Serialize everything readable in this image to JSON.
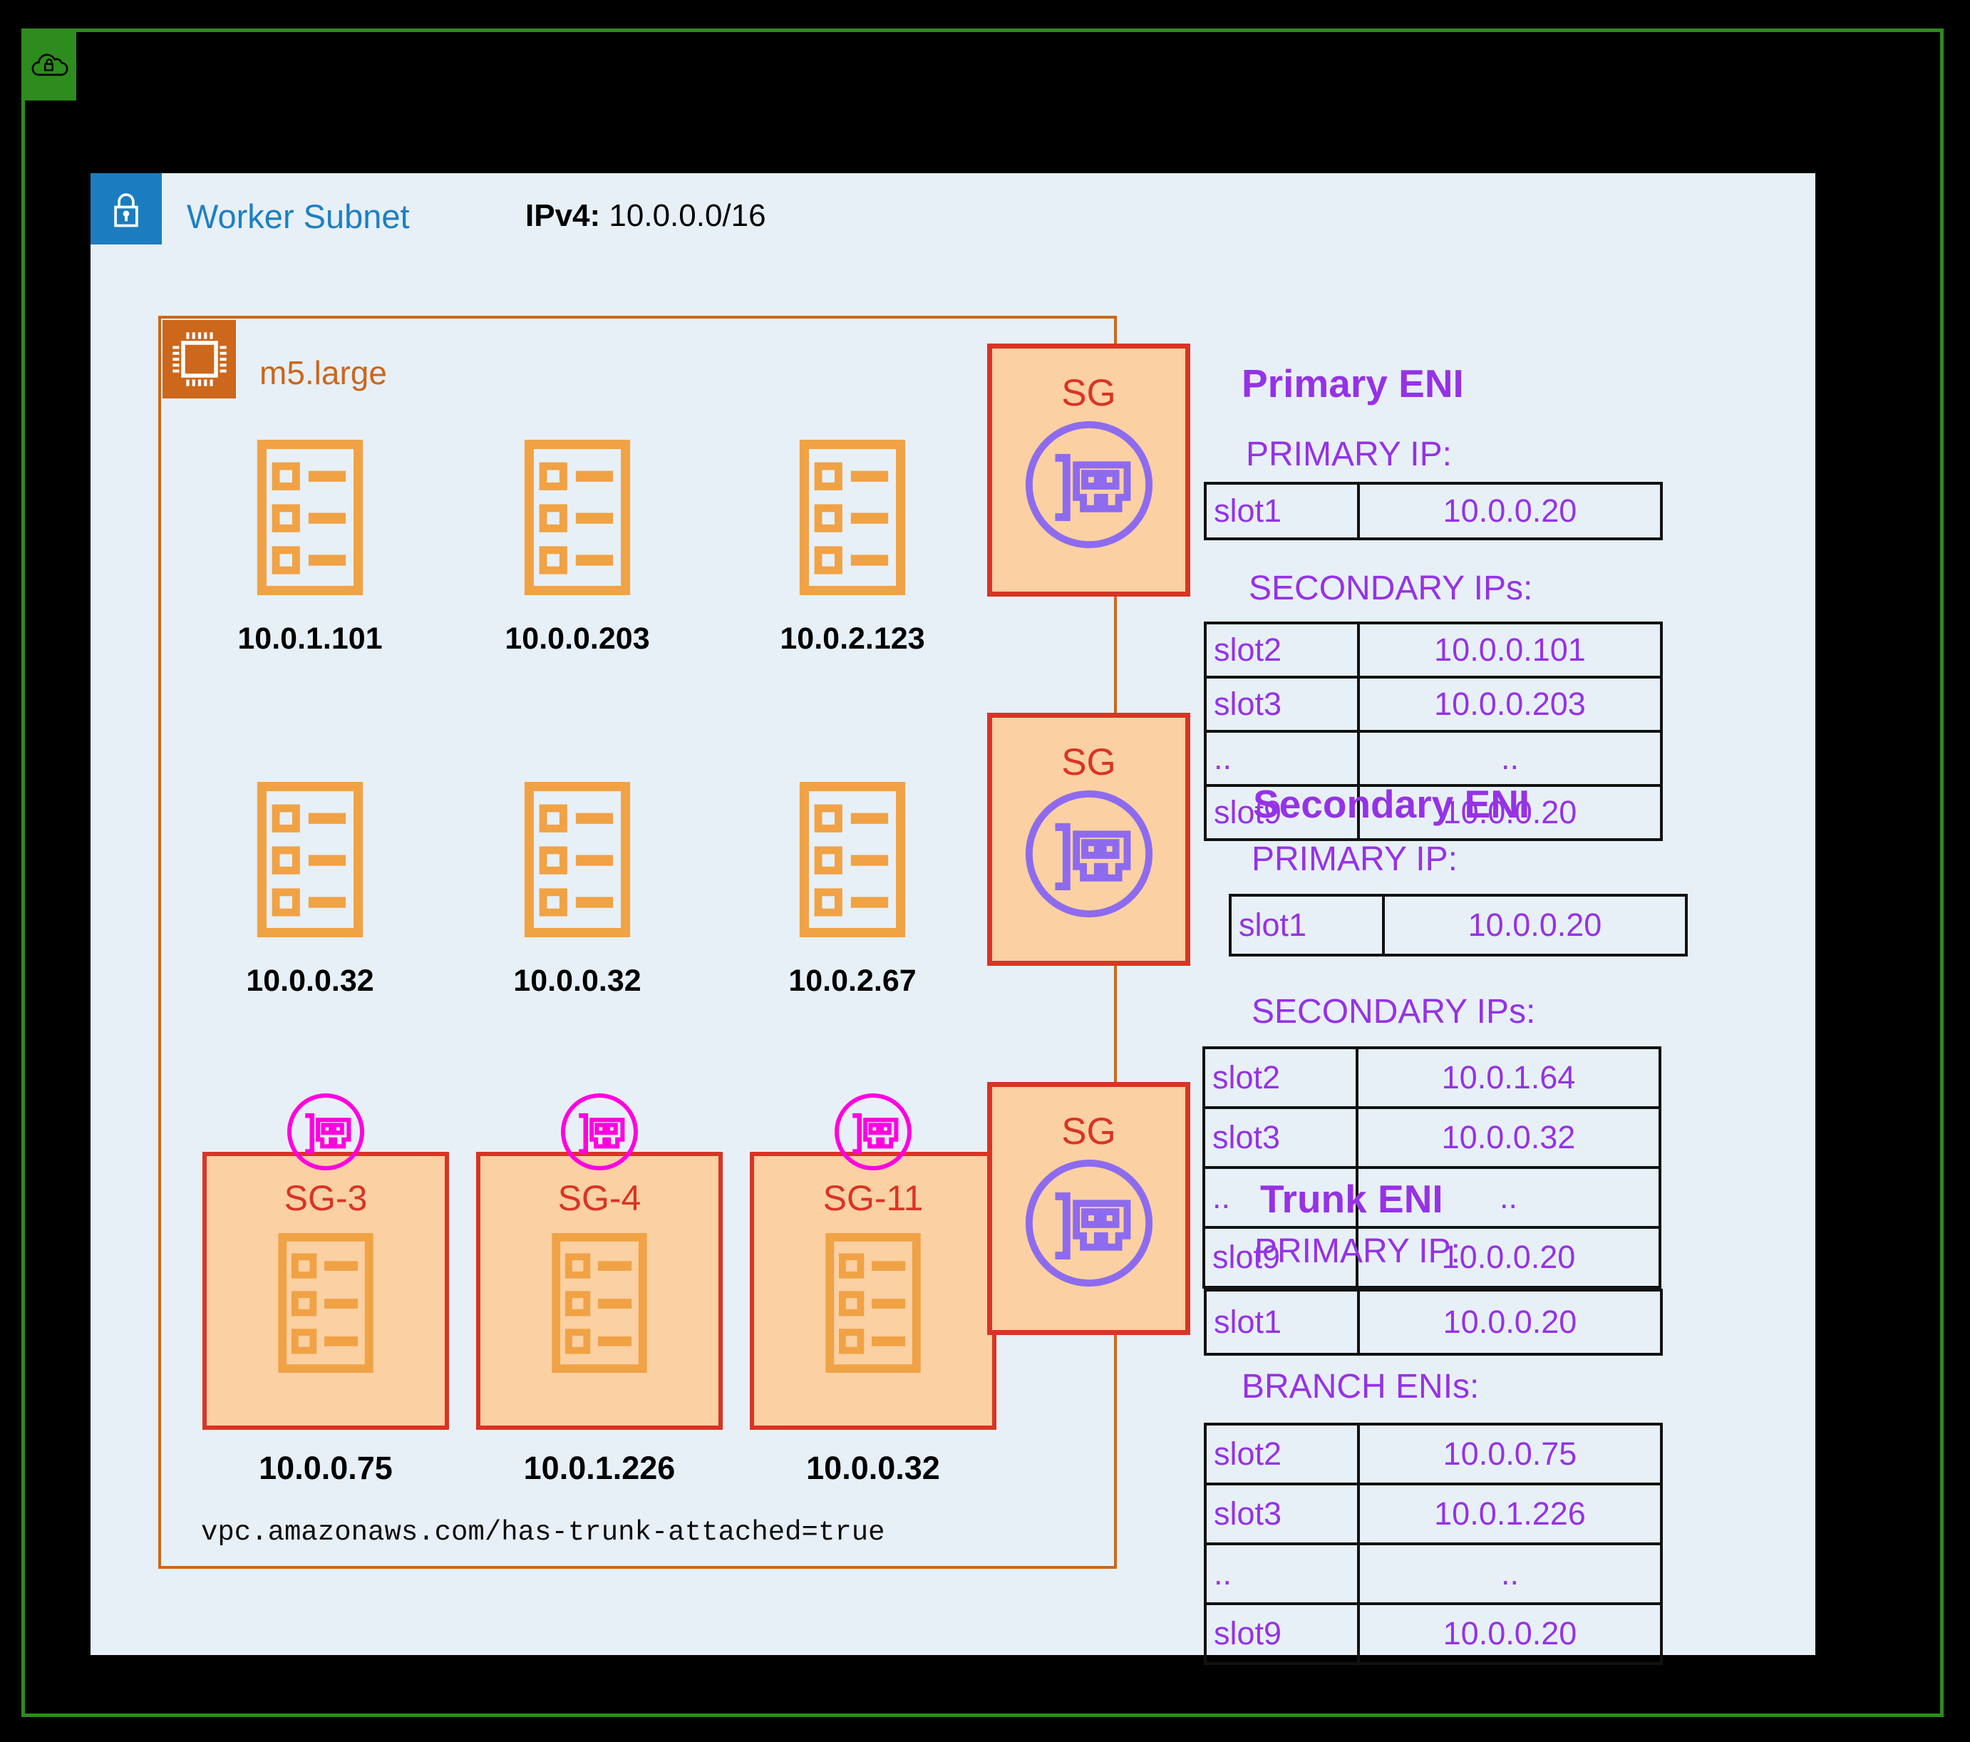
{
  "colors": {
    "vpc_green": "#2e8b1e",
    "subnet_blue": "#1b7dbf",
    "panel_blue": "#e7f0f7",
    "instance_orange": "#cc671c",
    "pod_orange": "#f0a245",
    "sg_border_red": "#d93425",
    "sg_fill_orange": "#fbd0a2",
    "eni_purple": "#8d6bee",
    "eni_magenta": "#ff00df",
    "text_violet": "#9632e6"
  },
  "icons": {
    "vpc": "cloud-lock-icon",
    "subnet": "lock-icon",
    "instance": "cpu-chip-icon",
    "pod": "list-document-icon",
    "eni": "network-card-icon"
  },
  "header": {
    "title": "Worker Subnet",
    "ipv4_label": "IPv4:",
    "ipv4_value": "10.0.0.0/16"
  },
  "instance": {
    "type": "m5.large",
    "annotation": "vpc.amazonaws.com/has-trunk-attached=true"
  },
  "pods": {
    "row1": [
      "10.0.1.101",
      "10.0.0.203",
      "10.0.2.123"
    ],
    "row2": [
      "10.0.0.32",
      "10.0.0.32",
      "10.0.2.67"
    ]
  },
  "branch_sgs": [
    {
      "label": "SG-3",
      "ip": "10.0.0.75"
    },
    {
      "label": "SG-4",
      "ip": "10.0.1.226"
    },
    {
      "label": "SG-11",
      "ip": "10.0.0.32"
    }
  ],
  "sg_column": {
    "label": "SG"
  },
  "eni_sections": [
    {
      "title": "Primary ENI",
      "primary_label": "PRIMARY IP:",
      "primary_rows": [
        [
          "slot1",
          "10.0.0.20"
        ]
      ],
      "secondary_label": "SECONDARY IPs:",
      "secondary_rows": [
        [
          "slot2",
          "10.0.0.101"
        ],
        [
          "slot3",
          "10.0.0.203"
        ],
        [
          "..",
          ".."
        ],
        [
          "slot9",
          "10.0.0.20"
        ]
      ]
    },
    {
      "title": "Secondary ENI",
      "primary_label": "PRIMARY IP:",
      "primary_rows": [
        [
          "slot1",
          "10.0.0.20"
        ]
      ],
      "secondary_label": "SECONDARY IPs:",
      "secondary_rows": [
        [
          "slot2",
          "10.0.1.64"
        ],
        [
          "slot3",
          "10.0.0.32"
        ],
        [
          "..",
          ".."
        ],
        [
          "slot9",
          "10.0.0.20"
        ]
      ]
    },
    {
      "title": "Trunk ENI",
      "primary_label": "PRIMARY IP:",
      "primary_rows": [
        [
          "slot1",
          "10.0.0.20"
        ]
      ],
      "secondary_label": "BRANCH ENIs:",
      "secondary_rows": [
        [
          "slot2",
          "10.0.0.75"
        ],
        [
          "slot3",
          "10.0.1.226"
        ],
        [
          "..",
          ".."
        ],
        [
          "slot9",
          "10.0.0.20"
        ]
      ]
    }
  ]
}
